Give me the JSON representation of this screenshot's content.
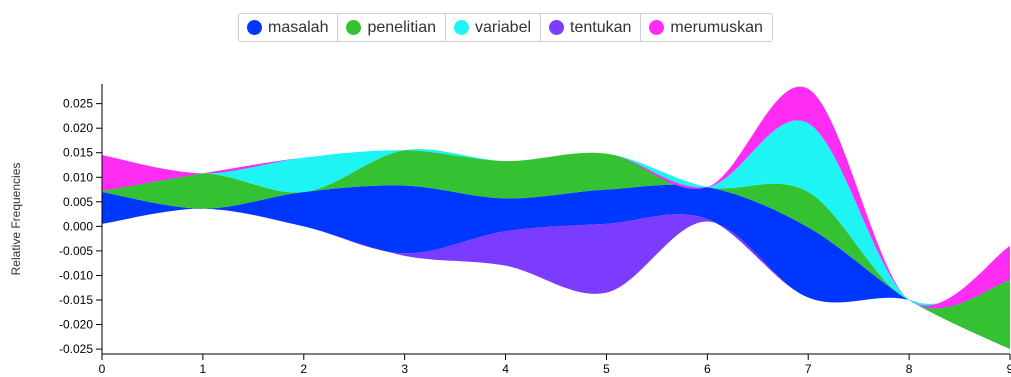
{
  "chart_data": {
    "type": "area",
    "subtype": "streamgraph",
    "x": [
      0,
      1,
      2,
      3,
      4,
      5,
      6,
      7,
      8,
      9
    ],
    "ylabel": "Relative Frequencies",
    "xlabel": "",
    "xlim": [
      0,
      9
    ],
    "ylim": [
      -0.026,
      0.029
    ],
    "xticks": [
      "0",
      "1",
      "2",
      "3",
      "4",
      "5",
      "6",
      "7",
      "8",
      "9"
    ],
    "yticks": [
      "0.025",
      "0.020",
      "0.015",
      "0.010",
      "0.005",
      "0.000",
      "-0.005",
      "-0.010",
      "-0.015",
      "-0.020",
      "-0.025"
    ],
    "legend_position": "top",
    "series": [
      {
        "name": "masalah",
        "color": "#0037ff",
        "lower": [
          0.0005,
          0.0036,
          0.0,
          -0.0055,
          -0.001,
          0.0005,
          0.0015,
          -0.0145,
          -0.015,
          -0.025
        ],
        "upper": [
          0.007,
          0.0036,
          0.007,
          0.0083,
          0.0057,
          0.0075,
          0.008,
          -0.0002,
          -0.015,
          -0.025
        ]
      },
      {
        "name": "penelitian",
        "color": "#34c233",
        "lower": [
          0.007,
          0.0036,
          0.007,
          0.0083,
          0.0057,
          0.0075,
          0.008,
          -0.0002,
          -0.015,
          -0.025
        ],
        "upper": [
          0.0072,
          0.0108,
          0.007,
          0.0155,
          0.0133,
          0.0148,
          0.008,
          0.007,
          -0.015,
          -0.011
        ]
      },
      {
        "name": "variabel",
        "color": "#1ff4f4",
        "lower": [
          0.0072,
          0.0108,
          0.007,
          0.0155,
          0.0133,
          0.0148,
          0.008,
          0.007,
          -0.015,
          -0.011
        ],
        "upper": [
          0.0072,
          0.0108,
          0.014,
          0.0155,
          0.0133,
          0.0148,
          0.008,
          0.021,
          -0.015,
          -0.011
        ]
      },
      {
        "name": "tentukan",
        "color": "#7b3cff",
        "lower": [
          0.0005,
          0.0036,
          0.0,
          -0.006,
          -0.008,
          -0.0135,
          0.001,
          -0.0145,
          -0.015,
          -0.025
        ],
        "upper": [
          0.0005,
          0.0036,
          0.0,
          -0.0055,
          -0.001,
          0.0005,
          0.0015,
          -0.0145,
          -0.015,
          -0.025
        ]
      },
      {
        "name": "merumuskan",
        "color": "#ff2cf4",
        "lower": [
          0.0072,
          0.0108,
          0.014,
          0.0155,
          0.0133,
          0.0148,
          0.008,
          0.021,
          -0.015,
          -0.011
        ],
        "upper": [
          0.0145,
          0.0108,
          0.014,
          0.0155,
          0.0133,
          0.0148,
          0.008,
          0.028,
          -0.015,
          -0.004
        ]
      }
    ]
  }
}
